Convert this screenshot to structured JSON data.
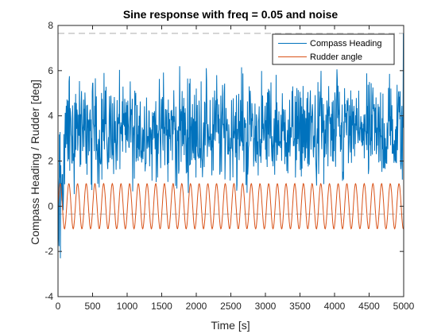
{
  "chart_data": {
    "type": "line",
    "title": "Sine response with freq = 0.05 and noise",
    "xlabel": "Time [s]",
    "ylabel": "Compass Heading / Rudder [deg]",
    "xlim": [
      0,
      5000
    ],
    "ylim": [
      -4,
      8
    ],
    "x_ticks": [
      0,
      500,
      1000,
      1500,
      2000,
      2500,
      3000,
      3500,
      4000,
      4500,
      5000
    ],
    "y_ticks": [
      -4,
      -2,
      0,
      2,
      4,
      6,
      8
    ],
    "grid": false,
    "legend_location": "top-right",
    "reference_lines": [
      {
        "y": 7.65,
        "style": "dashed",
        "color": "#c8c8c8"
      },
      {
        "y": -0.35,
        "style": "dashed",
        "color": "#c8c8c8"
      }
    ],
    "series": [
      {
        "name": "Compass Heading",
        "color": "#0072BD",
        "description_values": {
          "mean": 3.3,
          "typical_min": 1.0,
          "typical_max": 6.0,
          "min": -2.3,
          "max": 7.65,
          "x_start": 0,
          "x_end": 5000,
          "sample_step": 5
        }
      },
      {
        "name": "Rudder angle",
        "color": "#D95319",
        "function": "sine",
        "amplitude": 1,
        "offset": 0,
        "period": 125.66,
        "x_start": 0,
        "x_end": 5000,
        "sample_step": 5
      }
    ]
  }
}
